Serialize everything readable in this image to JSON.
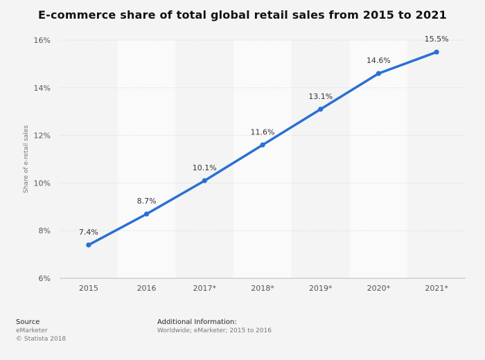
{
  "chart_data": {
    "type": "line",
    "title": "E-commerce share of total global retail sales from 2015 to 2021",
    "ylabel": "Share of e-retail sales",
    "xlabel": "",
    "categories": [
      "2015",
      "2016",
      "2017*",
      "2018*",
      "2019*",
      "2020*",
      "2021*"
    ],
    "series": [
      {
        "values": [
          7.4,
          8.7,
          10.1,
          11.6,
          13.1,
          14.6,
          15.5
        ]
      }
    ],
    "data_labels": [
      "7.4%",
      "8.7%",
      "10.1%",
      "11.6%",
      "13.1%",
      "14.6%",
      "15.5%"
    ],
    "ylim": [
      6,
      16
    ],
    "yticks": [
      6,
      8,
      10,
      12,
      14,
      16
    ],
    "ytick_labels": [
      "6%",
      "8%",
      "10%",
      "12%",
      "14%",
      "16%"
    ],
    "grid": true,
    "legend": "none",
    "line_color": "#2a6fd4"
  },
  "footer": {
    "source_heading": "Source",
    "source_line1": "eMarketer",
    "source_line2": "© Statista 2018",
    "info_heading": "Additional Information:",
    "info_text": "Worldwide; eMarketer; 2015 to 2016"
  }
}
